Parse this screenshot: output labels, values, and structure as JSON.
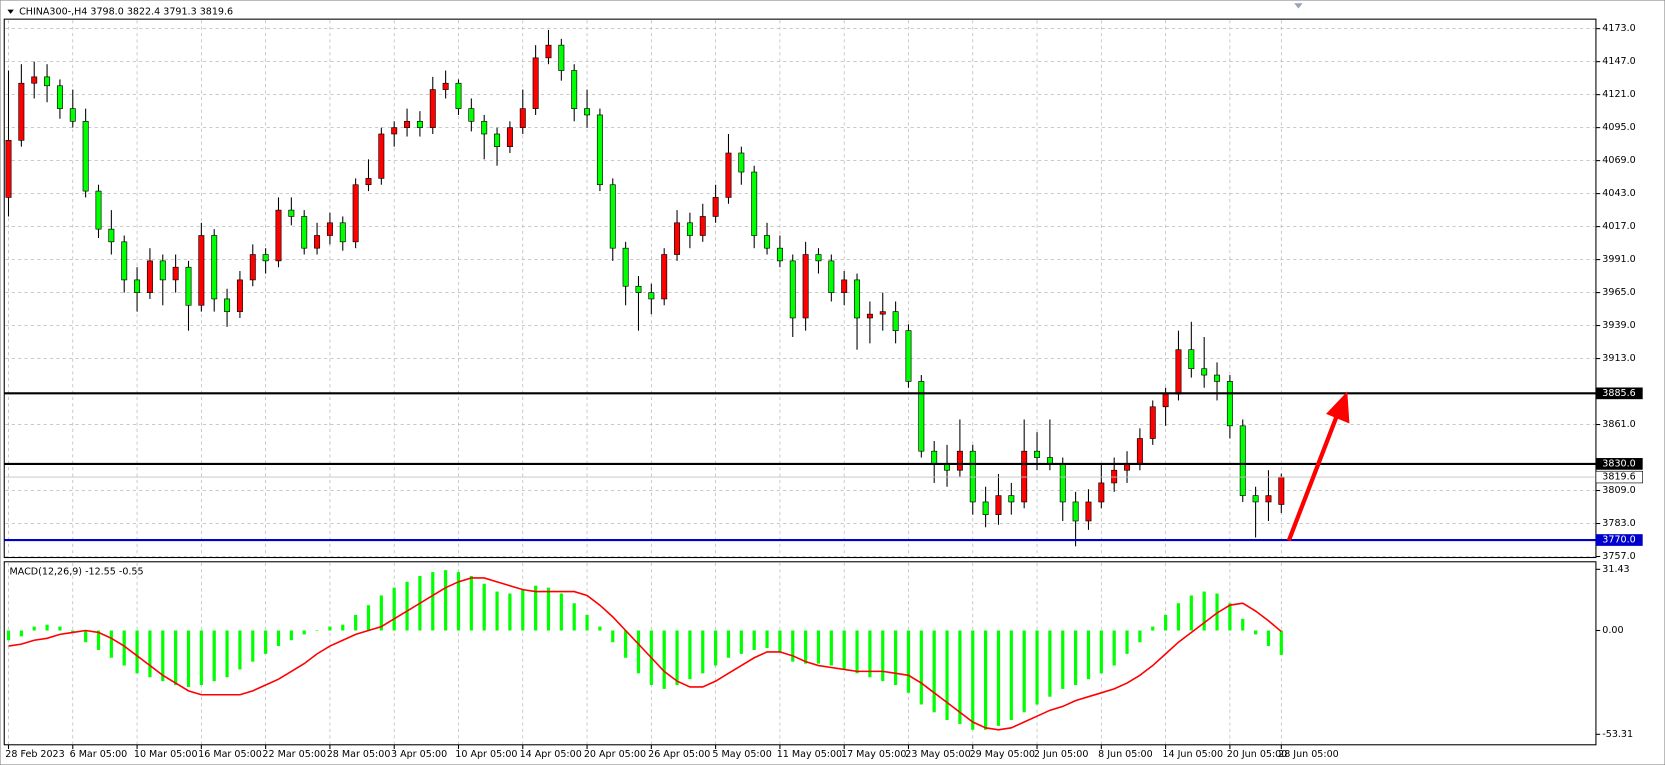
{
  "chart_data": [
    {
      "type": "candlestick",
      "title": "CHINA300-,H4",
      "categories": [
        "28 Feb 2023",
        null,
        null,
        null,
        null,
        "6 Mar 05:00",
        null,
        null,
        null,
        null,
        "10 Mar 05:00",
        null,
        null,
        null,
        null,
        "16 Mar 05:00",
        null,
        null,
        null,
        null,
        "22 Mar 05:00",
        null,
        null,
        null,
        null,
        "28 Mar 05:00",
        null,
        null,
        null,
        null,
        "3 Apr 05:00",
        null,
        null,
        null,
        null,
        "10 Apr 05:00",
        null,
        null,
        null,
        null,
        "14 Apr 05:00",
        null,
        null,
        null,
        null,
        "20 Apr 05:00",
        null,
        null,
        null,
        null,
        "26 Apr 05:00",
        null,
        null,
        null,
        null,
        "5 May 05:00",
        null,
        null,
        null,
        null,
        "11 May 05:00",
        null,
        null,
        null,
        null,
        "17 May 05:00",
        null,
        null,
        null,
        null,
        "23 May 05:00",
        null,
        null,
        null,
        null,
        "29 May 05:00",
        null,
        null,
        null,
        null,
        "2 Jun 05:00",
        null,
        null,
        null,
        null,
        "8 Jun 05:00",
        null,
        null,
        null,
        null,
        "14 Jun 05:00",
        null,
        null,
        null,
        null,
        "20 Jun 05:00",
        null,
        null,
        null,
        "28 Jun 05:00"
      ],
      "candles": [
        [
          4040,
          4140,
          4025,
          4085
        ],
        [
          4085,
          4145,
          4080,
          4130
        ],
        [
          4130,
          4147,
          4118,
          4135
        ],
        [
          4135,
          4145,
          4115,
          4128
        ],
        [
          4128,
          4133,
          4102,
          4110
        ],
        [
          4110,
          4125,
          4095,
          4100
        ],
        [
          4100,
          4110,
          4040,
          4045
        ],
        [
          4045,
          4050,
          4008,
          4015
        ],
        [
          4015,
          4030,
          3995,
          4005
        ],
        [
          4005,
          4010,
          3965,
          3975
        ],
        [
          3975,
          3985,
          3950,
          3965
        ],
        [
          3965,
          4000,
          3960,
          3990
        ],
        [
          3990,
          3995,
          3955,
          3975
        ],
        [
          3975,
          3995,
          3965,
          3985
        ],
        [
          3985,
          3990,
          3935,
          3955
        ],
        [
          3955,
          4020,
          3950,
          4010
        ],
        [
          4010,
          4015,
          3950,
          3960
        ],
        [
          3960,
          3968,
          3938,
          3950
        ],
        [
          3950,
          3982,
          3945,
          3975
        ],
        [
          3975,
          4003,
          3970,
          3995
        ],
        [
          3995,
          4000,
          3980,
          3990
        ],
        [
          3990,
          4040,
          3985,
          4030
        ],
        [
          4030,
          4040,
          4018,
          4025
        ],
        [
          4025,
          4030,
          3995,
          4000
        ],
        [
          4000,
          4020,
          3995,
          4010
        ],
        [
          4010,
          4028,
          4003,
          4020
        ],
        [
          4020,
          4025,
          3998,
          4005
        ],
        [
          4005,
          4055,
          4000,
          4050
        ],
        [
          4050,
          4070,
          4045,
          4055
        ],
        [
          4055,
          4095,
          4050,
          4090
        ],
        [
          4090,
          4100,
          4080,
          4095
        ],
        [
          4095,
          4110,
          4088,
          4100
        ],
        [
          4100,
          4108,
          4088,
          4095
        ],
        [
          4095,
          4135,
          4090,
          4125
        ],
        [
          4125,
          4140,
          4118,
          4130
        ],
        [
          4130,
          4133,
          4105,
          4110
        ],
        [
          4110,
          4118,
          4092,
          4100
        ],
        [
          4100,
          4105,
          4070,
          4090
        ],
        [
          4090,
          4095,
          4065,
          4080
        ],
        [
          4080,
          4100,
          4075,
          4095
        ],
        [
          4095,
          4125,
          4090,
          4110
        ],
        [
          4110,
          4160,
          4105,
          4150
        ],
        [
          4150,
          4172,
          4145,
          4160
        ],
        [
          4160,
          4165,
          4132,
          4140
        ],
        [
          4140,
          4145,
          4100,
          4110
        ],
        [
          4110,
          4125,
          4095,
          4105
        ],
        [
          4105,
          4110,
          4045,
          4050
        ],
        [
          4050,
          4055,
          3990,
          4000
        ],
        [
          4000,
          4005,
          3955,
          3970
        ],
        [
          3970,
          3978,
          3935,
          3965
        ],
        [
          3965,
          3972,
          3948,
          3960
        ],
        [
          3960,
          4000,
          3955,
          3995
        ],
        [
          3995,
          4030,
          3990,
          4020
        ],
        [
          4020,
          4028,
          4000,
          4010
        ],
        [
          4010,
          4035,
          4005,
          4025
        ],
        [
          4025,
          4050,
          4020,
          4040
        ],
        [
          4040,
          4090,
          4035,
          4075
        ],
        [
          4075,
          4080,
          4050,
          4060
        ],
        [
          4060,
          4065,
          4000,
          4010
        ],
        [
          4010,
          4020,
          3995,
          4000
        ],
        [
          4000,
          4010,
          3985,
          3990
        ],
        [
          3990,
          3995,
          3930,
          3945
        ],
        [
          3945,
          4005,
          3935,
          3995
        ],
        [
          3995,
          4000,
          3980,
          3990
        ],
        [
          3990,
          3995,
          3958,
          3965
        ],
        [
          3965,
          3982,
          3955,
          3975
        ],
        [
          3975,
          3980,
          3920,
          3945
        ],
        [
          3945,
          3958,
          3925,
          3948
        ],
        [
          3948,
          3965,
          3935,
          3950
        ],
        [
          3950,
          3958,
          3925,
          3935
        ],
        [
          3935,
          3940,
          3890,
          3895
        ],
        [
          3895,
          3900,
          3835,
          3840
        ],
        [
          3840,
          3848,
          3815,
          3830
        ],
        [
          3830,
          3845,
          3812,
          3825
        ],
        [
          3825,
          3865,
          3820,
          3840
        ],
        [
          3840,
          3845,
          3790,
          3800
        ],
        [
          3800,
          3812,
          3780,
          3790
        ],
        [
          3790,
          3822,
          3782,
          3805
        ],
        [
          3805,
          3815,
          3790,
          3800
        ],
        [
          3800,
          3865,
          3795,
          3840
        ],
        [
          3840,
          3855,
          3825,
          3835
        ],
        [
          3835,
          3865,
          3825,
          3830
        ],
        [
          3830,
          3835,
          3785,
          3800
        ],
        [
          3800,
          3808,
          3765,
          3785
        ],
        [
          3785,
          3810,
          3778,
          3800
        ],
        [
          3800,
          3830,
          3795,
          3815
        ],
        [
          3815,
          3835,
          3808,
          3825
        ],
        [
          3825,
          3840,
          3815,
          3830
        ],
        [
          3830,
          3858,
          3825,
          3850
        ],
        [
          3850,
          3880,
          3845,
          3875
        ],
        [
          3875,
          3890,
          3860,
          3885
        ],
        [
          3885,
          3935,
          3880,
          3920
        ],
        [
          3920,
          3942,
          3898,
          3905
        ],
        [
          3905,
          3930,
          3890,
          3900
        ],
        [
          3900,
          3910,
          3880,
          3895
        ],
        [
          3895,
          3900,
          3850,
          3860
        ],
        [
          3860,
          3865,
          3800,
          3805
        ],
        [
          3805,
          3812,
          3772,
          3800
        ],
        [
          3800,
          3825,
          3785,
          3805
        ],
        [
          3798.0,
          3822.4,
          3791.3,
          3819.6
        ]
      ],
      "value_labels": [
        null,
        null,
        null,
        null,
        null,
        null,
        null,
        null,
        null,
        null,
        null,
        null,
        null,
        null,
        null,
        null,
        null,
        null,
        null,
        null,
        null,
        null,
        null,
        null,
        null,
        null,
        null,
        null,
        null,
        null,
        null,
        null,
        null,
        null,
        null,
        null,
        null,
        null,
        null,
        null,
        null,
        null,
        null,
        null,
        null,
        null,
        null,
        null,
        null,
        null,
        null,
        null,
        null,
        null,
        null,
        null,
        null,
        null,
        null,
        null,
        null,
        null,
        null,
        null,
        null,
        null,
        null,
        null,
        null,
        null,
        null,
        null,
        null,
        null,
        null,
        null,
        null,
        null,
        null,
        null,
        null,
        null,
        null,
        null,
        null,
        null,
        null,
        null,
        null,
        null,
        null,
        null,
        null,
        null,
        null,
        null,
        null,
        null,
        null,
        [
          "3798.0",
          "3822.4",
          "3791.3",
          "3819.6"
        ]
      ],
      "up_color": "#ff0000",
      "down_color": "#00ff00",
      "ylim": [
        3756.2,
        4180.5
      ],
      "yticks": [
        {
          "value": 4173,
          "label": "4173.0"
        },
        {
          "value": 4147,
          "label": "4147.0"
        },
        {
          "value": 4121,
          "label": "4121.0"
        },
        {
          "value": 4095,
          "label": "4095.0"
        },
        {
          "value": 4069,
          "label": "4069.0"
        },
        {
          "value": 4043,
          "label": "4043.0"
        },
        {
          "value": 4017,
          "label": "4017.0"
        },
        {
          "value": 3991,
          "label": "3991.0"
        },
        {
          "value": 3965,
          "label": "3965.0"
        },
        {
          "value": 3939,
          "label": "3939.0"
        },
        {
          "value": 3913,
          "label": "3913.0"
        },
        {
          "value": 3861,
          "label": "3861.0"
        },
        {
          "value": 3809,
          "label": "3809.0"
        },
        {
          "value": 3783,
          "label": "3783.0"
        },
        {
          "value": 3757,
          "label": "3757.0"
        }
      ],
      "levels": [
        {
          "price": 3885.6,
          "color": "#000000"
        },
        {
          "price": {
            "value": 3830,
            "label": "3830.0"
          },
          "color": "#000000"
        },
        {
          "price": {
            "value": 3770,
            "label": "3770.0"
          },
          "color": "#0000cc"
        }
      ],
      "grid": true
    },
    {
      "type": "macd",
      "title": "MACD(12,26,9)",
      "histogram": {
        "color": "#00ff00",
        "values": [
          -5,
          -3,
          2,
          3,
          2,
          -1,
          -6,
          -10,
          -14,
          -18,
          -22,
          -24,
          -26,
          -28,
          -29,
          -28,
          -26,
          -24,
          -20,
          -16,
          -12,
          -8,
          -5,
          -2,
          0,
          2,
          3,
          8,
          13,
          18,
          22,
          25,
          28,
          30,
          31,
          30,
          28,
          24,
          20,
          19,
          21,
          23,
          22,
          19,
          14,
          8,
          2,
          -6,
          -14,
          -22,
          -28,
          -30,
          -28,
          -25,
          -22,
          -18,
          -14,
          -12,
          -10,
          -9,
          -11,
          -16,
          -17,
          -17,
          -18,
          -20,
          -22,
          -24,
          -26,
          -28,
          -32,
          -38,
          -42,
          -46,
          -48,
          -51,
          -51,
          -49,
          -46,
          -42,
          -38,
          -34,
          -30,
          -28,
          -25,
          -22,
          -18,
          -12,
          -6,
          2,
          8,
          14,
          18,
          20,
          19,
          14,
          6,
          -2,
          -8,
          -12.55
        ]
      },
      "signal": {
        "color": "#ff0000",
        "values": [
          -8,
          -7,
          -5,
          -4,
          -2,
          -1,
          0,
          -1,
          -4,
          -8,
          -13,
          -18,
          -23,
          -27,
          -31,
          -33,
          -33,
          -33,
          -33,
          -31,
          -28,
          -25,
          -21,
          -17,
          -12,
          -8,
          -5,
          -2,
          0,
          2,
          6,
          10,
          14,
          18,
          22,
          25,
          27,
          27,
          25,
          23,
          21,
          20,
          20,
          20,
          20,
          18,
          13,
          7,
          0,
          -7,
          -14,
          -21,
          -26,
          -29,
          -29,
          -26,
          -22,
          -18,
          -14,
          -11,
          -11,
          -13,
          -16,
          -18,
          -19,
          -20,
          -21,
          -21,
          -21,
          -22,
          -23,
          -27,
          -32,
          -37,
          -42,
          -47,
          -50,
          -51,
          -50,
          -47,
          -44,
          -41,
          -39,
          -36,
          -34,
          -32,
          -30,
          -27,
          -23,
          -18,
          -12,
          -6,
          -1,
          4,
          9,
          13,
          14,
          10,
          5,
          -0.55
        ]
      },
      "ylim": [
        -58.7,
        35.3
      ],
      "yticks": [
        31.43,
        {
          "value": 0,
          "label": "0.00"
        },
        -53.31
      ]
    }
  ]
}
